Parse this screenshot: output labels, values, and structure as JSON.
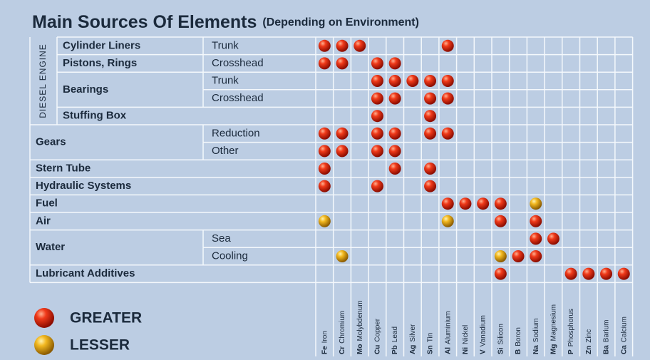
{
  "title": "Main Sources Of Elements",
  "subtitle": "(Depending on Environment)",
  "section_label": "DIESEL ENGINE",
  "legend": {
    "greater": "GREATER",
    "lesser": "LESSER"
  },
  "elements": [
    {
      "symbol": "Fe",
      "name": "Iron"
    },
    {
      "symbol": "Cr",
      "name": "Chromium"
    },
    {
      "symbol": "Mo",
      "name": "Molybdenum"
    },
    {
      "symbol": "Cu",
      "name": "Copper"
    },
    {
      "symbol": "Pb",
      "name": "Lead"
    },
    {
      "symbol": "Ag",
      "name": "Silver"
    },
    {
      "symbol": "Sn",
      "name": "Tin"
    },
    {
      "symbol": "Al",
      "name": "Aluminium"
    },
    {
      "symbol": "Ni",
      "name": "Nickel"
    },
    {
      "symbol": "V",
      "name": "Vanadium"
    },
    {
      "symbol": "Si",
      "name": "Silicon"
    },
    {
      "symbol": "B",
      "name": "Boron"
    },
    {
      "symbol": "Na",
      "name": "Sodium"
    },
    {
      "symbol": "Mg",
      "name": "Magnesium"
    },
    {
      "symbol": "P",
      "name": "Phosphorus"
    },
    {
      "symbol": "Zn",
      "name": "Zinc"
    },
    {
      "symbol": "Ba",
      "name": "Barium"
    },
    {
      "symbol": "Ca",
      "name": "Calcium"
    }
  ],
  "groups": [
    {
      "label": "Cylinder Liners",
      "diesel": true,
      "rows": [
        {
          "sub": "Trunk",
          "greater": [
            "Fe",
            "Cr",
            "Mo",
            "Al"
          ],
          "lesser": []
        }
      ]
    },
    {
      "label": "Pistons, Rings",
      "diesel": true,
      "rows": [
        {
          "sub": "Crosshead",
          "greater": [
            "Fe",
            "Cr",
            "Cu",
            "Pb"
          ],
          "lesser": []
        }
      ]
    },
    {
      "label": "Bearings",
      "diesel": true,
      "rows": [
        {
          "sub": "Trunk",
          "greater": [
            "Cu",
            "Pb",
            "Ag",
            "Sn",
            "Al"
          ],
          "lesser": []
        },
        {
          "sub": "Crosshead",
          "greater": [
            "Cu",
            "Pb",
            "Sn",
            "Al"
          ],
          "lesser": []
        }
      ]
    },
    {
      "label": "Stuffing Box",
      "diesel": true,
      "rows": [
        {
          "greater": [
            "Cu",
            "Sn"
          ],
          "lesser": []
        }
      ]
    },
    {
      "label": "Gears",
      "rows": [
        {
          "sub": "Reduction",
          "greater": [
            "Fe",
            "Cr",
            "Cu",
            "Pb",
            "Sn",
            "Al"
          ],
          "lesser": []
        },
        {
          "sub": "Other",
          "greater": [
            "Fe",
            "Cr",
            "Cu",
            "Pb"
          ],
          "lesser": []
        }
      ]
    },
    {
      "label": "Stern Tube",
      "rows": [
        {
          "greater": [
            "Fe",
            "Pb",
            "Sn"
          ],
          "lesser": []
        }
      ]
    },
    {
      "label": "Hydraulic Systems",
      "rows": [
        {
          "greater": [
            "Fe",
            "Cu",
            "Sn"
          ],
          "lesser": []
        }
      ]
    },
    {
      "label": "Fuel",
      "rows": [
        {
          "greater": [
            "Al",
            "Ni",
            "V",
            "Si"
          ],
          "lesser": [
            "Na"
          ]
        }
      ]
    },
    {
      "label": "Air",
      "rows": [
        {
          "greater": [
            "Si",
            "Na"
          ],
          "lesser": [
            "Fe",
            "Al"
          ]
        }
      ]
    },
    {
      "label": "Water",
      "rows": [
        {
          "sub": "Sea",
          "greater": [
            "Na",
            "Mg"
          ],
          "lesser": []
        },
        {
          "sub": "Cooling",
          "greater": [
            "B",
            "Na"
          ],
          "lesser": [
            "Cr",
            "Si"
          ]
        }
      ]
    },
    {
      "label": "Lubricant Additives",
      "rows": [
        {
          "greater": [
            "Si",
            "P",
            "Zn",
            "Ba",
            "Ca"
          ],
          "lesser": []
        }
      ]
    }
  ]
}
